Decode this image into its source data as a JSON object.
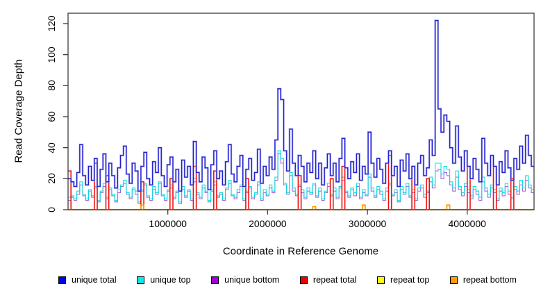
{
  "chart_data": {
    "type": "line",
    "subtype": "step-coverage",
    "title": "",
    "xlabel": "Coordinate in Reference Genome",
    "ylabel": "Read Coverage Depth",
    "xlim": [
      0,
      4670000
    ],
    "ylim": [
      0,
      126.7
    ],
    "grid": false,
    "legend_position": "bottom",
    "x_ticks": [
      {
        "value": 1000000,
        "label": "1000000"
      },
      {
        "value": 2000000,
        "label": "2000000"
      },
      {
        "value": 3000000,
        "label": "3000000"
      },
      {
        "value": 4000000,
        "label": "4000000"
      }
    ],
    "y_ticks": [
      0,
      20,
      40,
      60,
      80,
      100,
      120
    ],
    "x_step_bp": 29200,
    "series": [
      {
        "name": "unique total",
        "color": "#2121cc",
        "values": [
          20,
          18,
          15,
          24,
          42,
          22,
          16,
          28,
          19,
          33,
          15,
          26,
          36,
          18,
          30,
          22,
          14,
          27,
          35,
          41,
          23,
          17,
          30,
          25,
          12,
          28,
          37,
          20,
          16,
          31,
          24,
          40,
          22,
          15,
          29,
          34,
          18,
          26,
          12,
          32,
          21,
          28,
          16,
          44,
          24,
          18,
          34,
          27,
          13,
          29,
          38,
          20,
          25,
          16,
          31,
          42,
          23,
          18,
          28,
          35,
          15,
          26,
          33,
          19,
          24,
          39,
          17,
          28,
          22,
          34,
          26,
          45,
          78,
          71,
          38,
          25,
          52,
          30,
          22,
          35,
          28,
          18,
          30,
          24,
          38,
          20,
          30,
          16,
          27,
          36,
          22,
          30,
          18,
          33,
          46,
          27,
          20,
          31,
          24,
          36,
          19,
          28,
          23,
          50,
          30,
          21,
          33,
          26,
          17,
          30,
          38,
          22,
          28,
          15,
          32,
          25,
          36,
          20,
          28,
          16,
          30,
          35,
          22,
          27,
          45,
          35,
          122,
          65,
          50,
          61,
          57,
          40,
          30,
          54,
          34,
          25,
          38,
          28,
          20,
          33,
          26,
          18,
          46,
          30,
          22,
          35,
          28,
          16,
          31,
          24,
          38,
          27,
          19,
          33,
          26,
          41,
          30,
          48,
          35,
          28
        ]
      },
      {
        "name": "unique top",
        "color": "#00dede",
        "values": [
          8,
          9,
          7,
          12,
          18,
          10,
          7,
          13,
          9,
          15,
          6,
          12,
          17,
          8,
          14,
          10,
          6,
          13,
          16,
          19,
          11,
          8,
          14,
          12,
          5,
          13,
          17,
          9,
          7,
          15,
          11,
          18,
          10,
          7,
          13,
          16,
          8,
          12,
          5,
          15,
          9,
          13,
          7,
          20,
          11,
          8,
          16,
          12,
          6,
          13,
          18,
          9,
          11,
          7,
          14,
          19,
          10,
          8,
          13,
          16,
          7,
          12,
          15,
          8,
          11,
          18,
          7,
          13,
          10,
          16,
          12,
          21,
          38,
          33,
          17,
          11,
          24,
          14,
          10,
          16,
          13,
          8,
          14,
          11,
          17,
          9,
          14,
          7,
          12,
          17,
          10,
          14,
          8,
          15,
          21,
          12,
          9,
          14,
          11,
          17,
          8,
          13,
          10,
          23,
          14,
          9,
          15,
          12,
          7,
          14,
          17,
          10,
          13,
          6,
          15,
          11,
          17,
          9,
          13,
          7,
          14,
          16,
          10,
          12,
          21,
          16,
          30,
          30,
          23,
          28,
          26,
          18,
          14,
          25,
          15,
          11,
          17,
          13,
          9,
          15,
          12,
          8,
          21,
          14,
          10,
          16,
          13,
          7,
          14,
          11,
          17,
          12,
          8,
          15,
          12,
          19,
          14,
          22,
          16,
          13
        ]
      },
      {
        "name": "unique bottom",
        "color": "#a15ddd",
        "values": [
          6,
          8,
          6,
          10,
          16,
          9,
          6,
          12,
          8,
          14,
          5,
          11,
          15,
          7,
          13,
          9,
          5,
          11,
          15,
          17,
          10,
          7,
          13,
          10,
          4,
          12,
          16,
          8,
          6,
          13,
          10,
          17,
          9,
          6,
          12,
          14,
          7,
          11,
          4,
          13,
          8,
          12,
          6,
          18,
          10,
          7,
          14,
          11,
          5,
          12,
          16,
          8,
          10,
          6,
          13,
          17,
          9,
          7,
          11,
          15,
          6,
          11,
          14,
          7,
          10,
          16,
          6,
          11,
          9,
          14,
          11,
          19,
          36,
          30,
          16,
          10,
          22,
          12,
          9,
          15,
          11,
          7,
          12,
          10,
          16,
          8,
          12,
          6,
          11,
          15,
          9,
          12,
          7,
          14,
          19,
          11,
          8,
          13,
          9,
          15,
          7,
          11,
          9,
          21,
          12,
          8,
          13,
          10,
          6,
          12,
          16,
          9,
          11,
          5,
          13,
          10,
          15,
          8,
          11,
          6,
          12,
          14,
          8,
          11,
          18,
          14,
          25,
          26,
          20,
          24,
          22,
          16,
          12,
          21,
          13,
          9,
          15,
          11,
          7,
          13,
          10,
          6,
          18,
          12,
          8,
          14,
          11,
          6,
          12,
          9,
          15,
          10,
          7,
          13,
          10,
          16,
          12,
          19,
          14,
          11
        ]
      },
      {
        "name": "repeat total",
        "color": "#ee1111",
        "baseline": 0,
        "spikes": [
          [
            0,
            25
          ],
          [
            9,
            30
          ],
          [
            13,
            22
          ],
          [
            25,
            18
          ],
          [
            35,
            20
          ],
          [
            43,
            28
          ],
          [
            50,
            25
          ],
          [
            61,
            20
          ],
          [
            79,
            22
          ],
          [
            90,
            20
          ],
          [
            94,
            28
          ],
          [
            110,
            35
          ],
          [
            118,
            28
          ],
          [
            123,
            20
          ],
          [
            137,
            28
          ],
          [
            146,
            28
          ],
          [
            152,
            20
          ]
        ]
      },
      {
        "name": "repeat top",
        "color": "#ffff00",
        "baseline": 0,
        "spikes": []
      },
      {
        "name": "repeat bottom",
        "color": "#ff9d00",
        "baseline": 0,
        "spikes": [
          [
            25,
            3
          ],
          [
            84,
            2
          ],
          [
            101,
            3
          ],
          [
            130,
            3
          ]
        ]
      }
    ],
    "notable_peaks": [
      {
        "coord": 2100000,
        "value": 78
      },
      {
        "coord": 3690000,
        "value": 122
      },
      {
        "coord": 3720000,
        "value": 65
      },
      {
        "coord": 3010000,
        "value": 50
      },
      {
        "coord": 4590000,
        "value": 48
      }
    ]
  },
  "legend": {
    "items": [
      {
        "label": "unique total",
        "color": "#0000ee"
      },
      {
        "label": "unique top",
        "color": "#00eeee"
      },
      {
        "label": "unique bottom",
        "color": "#a000d0"
      },
      {
        "label": "repeat total",
        "color": "#ee0000"
      },
      {
        "label": "repeat top",
        "color": "#ffff00"
      },
      {
        "label": "repeat bottom",
        "color": "#ff9d00"
      }
    ]
  },
  "colors": {
    "axis": "#3c3c3c",
    "background": "#ffffff",
    "text": "#000000"
  }
}
